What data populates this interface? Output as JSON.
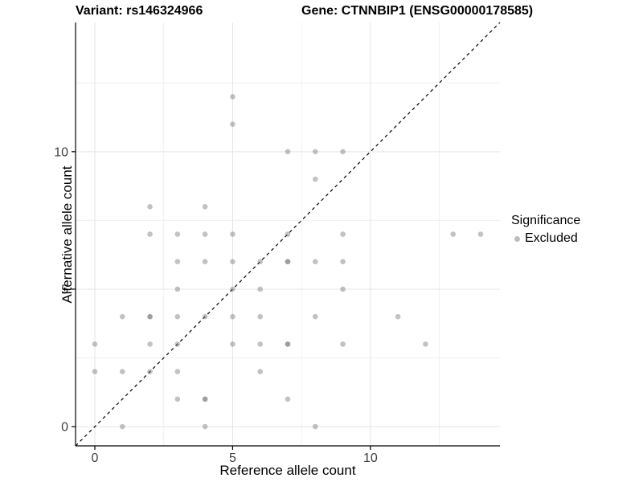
{
  "titles": {
    "variant": "Variant: rs146324966",
    "gene": "Gene: CTNNBIP1 (ENSG00000178585)"
  },
  "chart_data": {
    "type": "scatter",
    "title_left": "Variant: rs146324966",
    "title_right": "Gene: CTNNBIP1 (ENSG00000178585)",
    "xlabel": "Reference allele count",
    "ylabel": "Alternative allele count",
    "xlim": [
      -0.7,
      14.7
    ],
    "ylim": [
      -0.7,
      14.7
    ],
    "x_ticks": [
      0,
      5,
      10
    ],
    "y_ticks": [
      0,
      5,
      10
    ],
    "x_minor_ticks": [
      2.5,
      7.5,
      12.5
    ],
    "y_minor_ticks": [
      2.5,
      7.5,
      12.5
    ],
    "grid": true,
    "identity_line": {
      "style": "dashed",
      "from": [
        -0.7,
        -0.7
      ],
      "to": [
        14.7,
        14.7
      ],
      "color": "#000000"
    },
    "point_color_rgba": "rgba(110,110,110,0.42)",
    "point_color_hex": "#bdbdbd",
    "points": [
      [
        5,
        12
      ],
      [
        5,
        11
      ],
      [
        7,
        10
      ],
      [
        8,
        10
      ],
      [
        9,
        10
      ],
      [
        8,
        9
      ],
      [
        2,
        8
      ],
      [
        4,
        8
      ],
      [
        2,
        7
      ],
      [
        3,
        7
      ],
      [
        4,
        7
      ],
      [
        5,
        7
      ],
      [
        7,
        7
      ],
      [
        9,
        7
      ],
      [
        13,
        7
      ],
      [
        14,
        7
      ],
      [
        3,
        6
      ],
      [
        4,
        6
      ],
      [
        5,
        6
      ],
      [
        6,
        6
      ],
      [
        7,
        6
      ],
      [
        7,
        6
      ],
      [
        8,
        6
      ],
      [
        9,
        6
      ],
      [
        3,
        5
      ],
      [
        5,
        5
      ],
      [
        6,
        5
      ],
      [
        9,
        5
      ],
      [
        1,
        4
      ],
      [
        2,
        4
      ],
      [
        2,
        4
      ],
      [
        3,
        4
      ],
      [
        4,
        4
      ],
      [
        5,
        4
      ],
      [
        6,
        4
      ],
      [
        8,
        4
      ],
      [
        11,
        4
      ],
      [
        0,
        3
      ],
      [
        2,
        3
      ],
      [
        3,
        3
      ],
      [
        5,
        3
      ],
      [
        6,
        3
      ],
      [
        7,
        3
      ],
      [
        7,
        3
      ],
      [
        9,
        3
      ],
      [
        12,
        3
      ],
      [
        0,
        2
      ],
      [
        1,
        2
      ],
      [
        2,
        2
      ],
      [
        3,
        2
      ],
      [
        6,
        2
      ],
      [
        3,
        1
      ],
      [
        4,
        1
      ],
      [
        4,
        1
      ],
      [
        7,
        1
      ],
      [
        1,
        0
      ],
      [
        4,
        0
      ],
      [
        8,
        0
      ]
    ],
    "legend": {
      "title": "Significance",
      "position": "right",
      "items": [
        {
          "label": "Excluded",
          "color": "#bdbdbd"
        }
      ]
    }
  }
}
